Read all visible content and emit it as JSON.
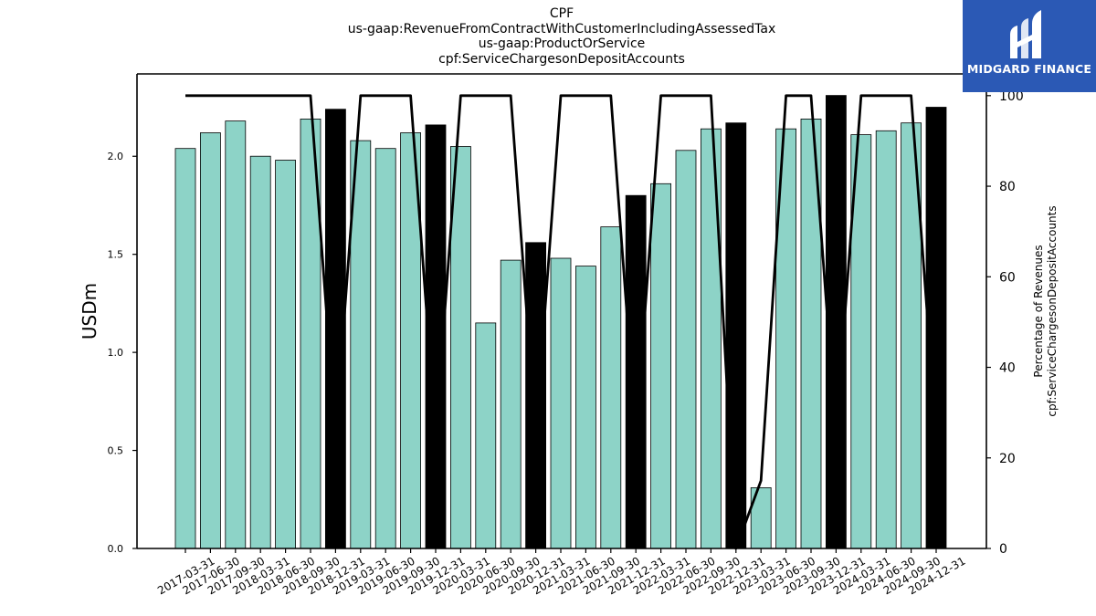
{
  "title_lines": [
    "CPF",
    "us-gaap:RevenueFromContractWithCustomerIncludingAssessedTax",
    "us-gaap:ProductOrService",
    "cpf:ServiceChargesonDepositAccounts"
  ],
  "logo": {
    "text": "MIDGARD FINANCE",
    "icon": "midgard-logo-icon",
    "bg_color": "#2b59b5"
  },
  "chart_data": {
    "type": "bar",
    "categories": [
      "2017-03-31",
      "2017-06-30",
      "2017-09-30",
      "2018-03-31",
      "2018-06-30",
      "2018-09-30",
      "2018-12-31",
      "2019-03-31",
      "2019-06-30",
      "2019-09-30",
      "2019-12-31",
      "2020-03-31",
      "2020-06-30",
      "2020-09-30",
      "2020-12-31",
      "2021-03-31",
      "2021-06-30",
      "2021-09-30",
      "2021-12-31",
      "2022-03-31",
      "2022-06-30",
      "2022-09-30",
      "2022-12-31",
      "2023-03-31",
      "2023-06-30",
      "2023-09-30",
      "2023-12-31",
      "2024-03-31",
      "2024-06-30",
      "2024-09-30",
      "2024-12-31"
    ],
    "series": [
      {
        "values": [
          2.04,
          2.12,
          2.18,
          2.0,
          1.98,
          2.19,
          2.24,
          2.08,
          2.04,
          2.12,
          2.16,
          2.05,
          1.15,
          1.47,
          1.56,
          1.48,
          1.44,
          1.64,
          1.8,
          1.86,
          2.03,
          2.14,
          2.17,
          0.31,
          2.14,
          2.19,
          2.31,
          2.11,
          2.13,
          2.17,
          2.25
        ],
        "highlight": [
          false,
          false,
          false,
          false,
          false,
          false,
          true,
          false,
          false,
          false,
          true,
          false,
          false,
          false,
          true,
          false,
          false,
          false,
          true,
          false,
          false,
          false,
          true,
          false,
          false,
          false,
          true,
          false,
          false,
          false,
          true
        ],
        "color": "#8dd3c7",
        "highlight_color": "#000000",
        "axis": "left"
      },
      {
        "type": "line",
        "values": [
          100,
          100,
          100,
          100,
          100,
          100,
          25,
          100,
          100,
          100,
          25,
          100,
          100,
          100,
          25,
          100,
          100,
          100,
          25,
          100,
          100,
          100,
          0,
          15,
          100,
          100,
          25,
          100,
          100,
          100,
          25
        ],
        "color": "#000000",
        "axis": "right"
      }
    ],
    "ylabel": "USDm",
    "y2label": [
      "Percentage of Revenues",
      "cpf:ServiceChargesonDepositAccounts"
    ],
    "ylim": [
      0,
      2.42
    ],
    "y2lim": [
      0,
      104.8
    ],
    "yticks": [
      "0.0",
      "0.5",
      "1.0",
      "1.5",
      "2.0"
    ],
    "y2ticks": [
      "0",
      "20",
      "40",
      "60",
      "80",
      "100"
    ],
    "grid": false
  }
}
